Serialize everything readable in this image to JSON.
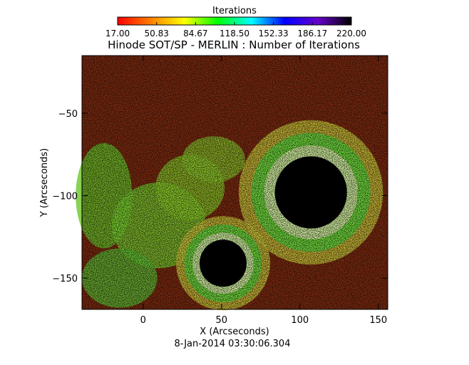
{
  "chart_data": {
    "type": "heatmap",
    "title": "Hinode SOT/SP - MERLIN : Number of Iterations",
    "xlabel": "X (Arcseconds)",
    "ylabel": "Y (Arcseconds)",
    "footer": "8-Jan-2014 03:30:06.304",
    "xlim": [
      -39,
      156
    ],
    "ylim": [
      -169,
      -15
    ],
    "xticks": [
      0,
      50,
      100,
      150
    ],
    "yticks": [
      -50,
      -100,
      -150
    ],
    "colorbar": {
      "title": "Iterations",
      "min": 17.0,
      "max": 220.0,
      "tick_labels": [
        "17.00",
        "50.83",
        "84.67",
        "118.50",
        "152.33",
        "186.17",
        "220.00"
      ],
      "colormap": [
        "#ff0000",
        "#ff8000",
        "#ffff00",
        "#00ff00",
        "#00ffff",
        "#0000ff",
        "#6600cc",
        "#000000"
      ]
    },
    "features": [
      {
        "name": "large sunspot umbra",
        "center": [
          107,
          -98
        ],
        "radius": 23
      },
      {
        "name": "small sunspot umbra",
        "center": [
          51,
          -141
        ],
        "radius": 15
      }
    ]
  }
}
